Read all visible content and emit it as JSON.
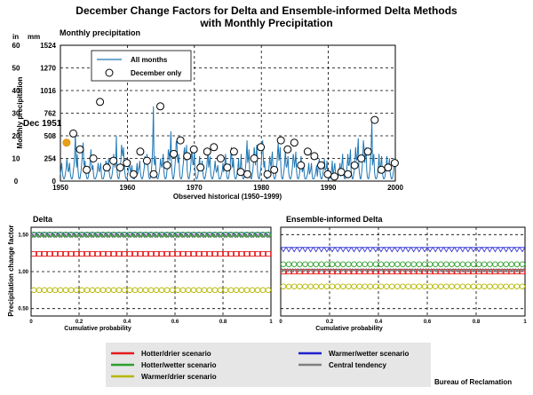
{
  "page": {
    "title_line1": "December Change Factors for Delta and Ensemble-informed Delta Methods",
    "title_line2": "with Monthly Precipitation",
    "credit": "Bureau of Reclamation"
  },
  "colors": {
    "series_all": "#1f77b4",
    "hotter_drier": "#e31a1c",
    "hotter_wetter": "#2ca02c",
    "warmer_drier": "#b5b800",
    "warmer_wetter": "#1f1fd0",
    "central": "#7f7f7f",
    "dec1951": "#e69500"
  },
  "legend": {
    "hotter_drier": "Hotter/drier scenario",
    "hotter_wetter": "Hotter/wetter scenario",
    "warmer_drier": "Warmer/drier scenario",
    "warmer_wetter": "Warmer/wetter scenario",
    "central": "Central tendency"
  },
  "chart_data": [
    {
      "type": "line",
      "title": "Monthly precipitation",
      "xlabel": "Observed historical (1950–1999)",
      "ylabel": "Monthly precipitation",
      "unit_in": "in",
      "unit_mm": "mm",
      "xlim": [
        1950,
        2000
      ],
      "ylim": [
        0,
        60
      ],
      "x_ticks": [
        "1950",
        "1960",
        "1970",
        "1980",
        "1990",
        "2000"
      ],
      "y_ticks_in": [
        "0",
        "10",
        "20",
        "30",
        "40",
        "50",
        "60"
      ],
      "y_ticks_mm": [
        "0",
        "254",
        "508",
        "762",
        "1016",
        "1270",
        "1524"
      ],
      "grid": true,
      "legend_position": "top-left",
      "legend": [
        "All months",
        "December only"
      ],
      "annotation": "Dec 1951",
      "series": [
        {
          "name": "All months",
          "values": [
            3,
            5,
            8,
            4,
            2,
            1,
            1,
            2,
            4,
            6,
            10,
            6,
            4,
            5,
            8,
            4,
            2,
            1,
            1,
            2,
            5,
            7,
            12,
            21,
            10,
            6,
            12,
            5,
            2,
            1,
            1,
            3,
            5,
            9,
            14,
            17,
            8,
            6,
            9,
            4,
            2,
            1,
            1,
            2,
            4,
            6,
            10,
            14,
            6,
            5,
            7,
            3,
            1,
            1,
            1,
            2,
            3,
            5,
            8,
            5,
            4,
            6,
            8,
            3,
            1,
            1,
            1,
            2,
            4,
            5,
            9,
            8,
            5,
            6,
            10,
            4,
            2,
            1,
            1,
            2,
            4,
            7,
            12,
            8,
            6,
            8,
            20,
            5,
            2,
            1,
            1,
            3,
            5,
            9,
            16,
            13,
            11,
            15,
            8,
            4,
            2,
            1,
            1,
            2,
            4,
            6,
            9,
            6,
            4,
            5,
            7,
            3,
            1,
            1,
            1,
            2,
            3,
            5,
            8,
            3,
            5,
            6,
            9,
            4,
            2,
            1,
            1,
            2,
            4,
            6,
            11,
            9,
            7,
            12,
            10,
            5,
            2,
            1,
            1,
            3,
            5,
            9,
            16,
            33,
            9,
            7,
            11,
            4,
            2,
            1,
            1,
            2,
            4,
            6,
            10,
            7,
            6,
            8,
            12,
            5,
            2,
            1,
            1,
            2,
            5,
            8,
            14,
            12,
            9,
            14,
            22,
            6,
            3,
            1,
            1,
            3,
            6,
            10,
            17,
            18,
            10,
            8,
            12,
            5,
            2,
            1,
            1,
            2,
            5,
            8,
            13,
            15,
            9,
            11,
            16,
            5,
            2,
            1,
            1,
            3,
            5,
            9,
            15,
            10,
            7,
            9,
            14,
            5,
            2,
            1,
            1,
            2,
            4,
            7,
            11,
            6,
            5,
            6,
            9,
            4,
            2,
            1,
            1,
            2,
            4,
            6,
            10,
            13,
            6,
            8,
            11,
            4,
            2,
            1,
            1,
            2,
            4,
            6,
            9,
            5,
            4,
            5,
            7,
            3,
            1,
            1,
            1,
            2,
            3,
            5,
            8,
            4,
            6,
            8,
            12,
            5,
            2,
            1,
            1,
            2,
            4,
            7,
            11,
            15,
            7,
            6,
            10,
            4,
            2,
            1,
            1,
            2,
            4,
            6,
            10,
            3,
            5,
            7,
            12,
            4,
            2,
            1,
            1,
            2,
            4,
            7,
            12,
            18,
            8,
            10,
            14,
            5,
            2,
            1,
            1,
            3,
            5,
            9,
            15,
            12,
            7,
            11,
            16,
            5,
            2,
            1,
            1,
            3,
            5,
            8,
            14,
            18,
            10,
            6,
            9,
            4,
            2,
            1,
            1,
            2,
            4,
            7,
            11,
            8,
            6,
            10,
            13,
            5,
            2,
            1,
            1,
            2,
            5,
            8,
            13,
            17,
            9,
            11,
            15,
            6,
            2,
            1,
            1,
            3,
            5,
            9,
            14,
            7,
            6,
            8,
            11,
            4,
            2,
            1,
            1,
            2,
            4,
            7,
            12,
            10,
            6,
            9,
            13,
            5,
            2,
            1,
            1,
            2,
            4,
            7,
            11,
            7,
            4,
            5,
            7,
            3,
            1,
            1,
            1,
            2,
            3,
            5,
            8,
            3,
            4,
            5,
            8,
            3,
            1,
            1,
            1,
            2,
            3,
            5,
            7,
            2,
            5,
            7,
            10,
            4,
            2,
            1,
            1,
            2,
            4,
            6,
            10,
            5,
            5,
            6,
            9,
            3,
            1,
            1,
            1,
            2,
            3,
            5,
            9,
            3,
            4,
            6,
            8,
            3,
            1,
            1,
            1,
            2,
            3,
            5,
            8,
            2,
            6,
            8,
            12,
            4,
            2,
            1,
            1,
            2,
            4,
            7,
            12,
            7,
            7,
            10,
            14,
            5,
            2,
            1,
            1,
            3,
            5,
            9,
            15,
            10,
            9,
            13,
            19,
            6,
            3,
            1,
            1,
            3,
            6,
            11,
            18,
            14,
            8,
            11,
            15,
            5,
            2,
            1,
            1,
            3,
            5,
            10,
            16,
            27,
            7,
            9,
            12,
            4,
            2,
            1,
            1,
            2,
            4,
            7,
            12,
            5,
            6,
            8,
            11,
            4,
            2,
            1,
            1,
            2,
            4,
            7,
            11,
            6,
            5,
            7,
            10,
            4,
            2,
            1,
            1,
            2,
            4,
            6,
            10,
            8
          ]
        },
        {
          "name": "December only",
          "x": [
            1951,
            1952,
            1953,
            1954,
            1955,
            1956,
            1957,
            1958,
            1959,
            1960,
            1961,
            1962,
            1963,
            1964,
            1965,
            1966,
            1967,
            1968,
            1969,
            1970,
            1971,
            1972,
            1973,
            1974,
            1975,
            1976,
            1977,
            1978,
            1979,
            1980,
            1981,
            1982,
            1983,
            1984,
            1985,
            1986,
            1987,
            1988,
            1989,
            1990,
            1991,
            1992,
            1993,
            1994,
            1995,
            1996,
            1997,
            1998,
            1999,
            2000
          ],
          "values": [
            17,
            21,
            14,
            5,
            10,
            35,
            6,
            9,
            6,
            8,
            3,
            13,
            9,
            3,
            33,
            7,
            12,
            18,
            11,
            14,
            6,
            13,
            15,
            10,
            6,
            13,
            4,
            3,
            10,
            15,
            3,
            5,
            18,
            14,
            17,
            7,
            13,
            11,
            7,
            3,
            2,
            4,
            3,
            7,
            10,
            13,
            27,
            5,
            6,
            8
          ]
        }
      ]
    },
    {
      "type": "scatter",
      "title": "Delta",
      "xlabel": "Cumulative probability",
      "ylabel": "Precipitation change factor",
      "xlim": [
        0,
        1
      ],
      "ylim": [
        0.4,
        1.6
      ],
      "x_ticks": [
        "0",
        "0.2",
        "0.4",
        "0.6",
        "0.8",
        "1"
      ],
      "y_ticks": [
        "0.50",
        "1.00",
        "1.50"
      ],
      "grid": true,
      "series": [
        {
          "name": "Warmer/wetter scenario",
          "value": 1.5
        },
        {
          "name": "Central tendency",
          "value": 1.48
        },
        {
          "name": "Hotter/wetter scenario",
          "value": 1.5
        },
        {
          "name": "Hotter/drier scenario",
          "value": 1.24
        },
        {
          "name": "Warmer/drier scenario",
          "value": 0.75
        }
      ]
    },
    {
      "type": "scatter",
      "title": "Ensemble-informed Delta",
      "xlabel": "Cumulative probability",
      "ylabel": "",
      "xlim": [
        0,
        1
      ],
      "ylim": [
        0.4,
        1.6
      ],
      "x_ticks": [
        "0",
        "0.2",
        "0.4",
        "0.6",
        "0.8",
        "1"
      ],
      "y_ticks": [],
      "grid": true,
      "series": [
        {
          "name": "Warmer/wetter scenario",
          "value": 1.3
        },
        {
          "name": "Hotter/wetter scenario",
          "value": 1.1
        },
        {
          "name": "Hotter/drier scenario",
          "value": 1.0
        },
        {
          "name": "Central tendency",
          "value": 1.02
        },
        {
          "name": "Warmer/drier scenario",
          "value": 0.8
        }
      ]
    }
  ]
}
